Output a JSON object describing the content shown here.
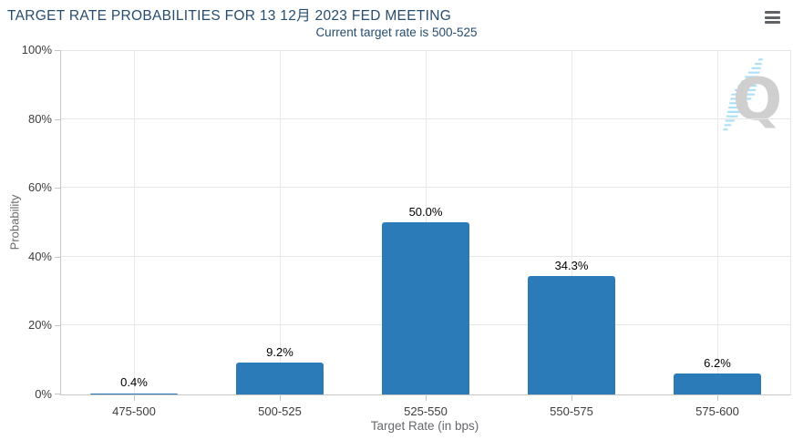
{
  "header": {
    "title": "TARGET RATE PROBABILITIES FOR 13 12月 2023 FED MEETING",
    "menu_icon": "hamburger-icon"
  },
  "chart_data": {
    "type": "bar",
    "title": "TARGET RATE PROBABILITIES FOR 13 12月 2023 FED MEETING",
    "subtitle": "Current target rate is 500-525",
    "categories": [
      "475-500",
      "500-525",
      "525-550",
      "550-575",
      "575-600"
    ],
    "values": [
      0.4,
      9.2,
      50.0,
      34.3,
      6.2
    ],
    "value_labels": [
      "0.4%",
      "9.2%",
      "50.0%",
      "34.3%",
      "6.2%"
    ],
    "xlabel": "Target Rate (in bps)",
    "ylabel": "Probability",
    "ylim": [
      0,
      100
    ],
    "ytick_step": 20,
    "ytick_labels": [
      "0%",
      "20%",
      "40%",
      "60%",
      "80%",
      "100%"
    ],
    "grid": true,
    "legend": false,
    "bar_color": "#2b7bb9"
  },
  "watermark": {
    "letter": "Q",
    "letter_color": "#cdcdcd",
    "stripe_color": "#a9def5"
  },
  "colors": {
    "title": "#264d6f",
    "subtitle": "#264d6f",
    "axis_line": "#c6c6c6",
    "gridline": "#e7e7e7",
    "tick_label": "#3d3d3d",
    "axis_title": "#66686c",
    "bar": "#2b7bb9",
    "value_label": "#000000",
    "menu_icon": "#5f6368"
  }
}
